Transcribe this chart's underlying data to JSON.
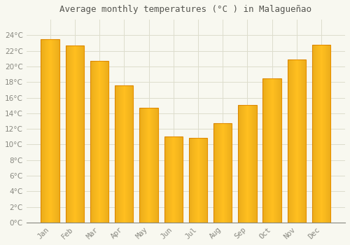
{
  "title": "Average monthly temperatures (°C ) in Malagueñao",
  "months": [
    "Jan",
    "Feb",
    "Mar",
    "Apr",
    "May",
    "Jun",
    "Jul",
    "Aug",
    "Sep",
    "Oct",
    "Nov",
    "Dec"
  ],
  "values": [
    23.5,
    22.7,
    20.7,
    17.6,
    14.7,
    11.0,
    10.8,
    12.7,
    15.1,
    18.5,
    20.9,
    22.8
  ],
  "bar_color_main": "#FFC020",
  "bar_color_edge": "#E89000",
  "background_color": "#F8F8F0",
  "plot_bg_color": "#F8F8F0",
  "grid_color": "#DDDDCC",
  "title_fontsize": 9,
  "tick_fontsize": 7.5,
  "ylim": [
    0,
    26
  ],
  "yticks": [
    0,
    2,
    4,
    6,
    8,
    10,
    12,
    14,
    16,
    18,
    20,
    22,
    24
  ]
}
